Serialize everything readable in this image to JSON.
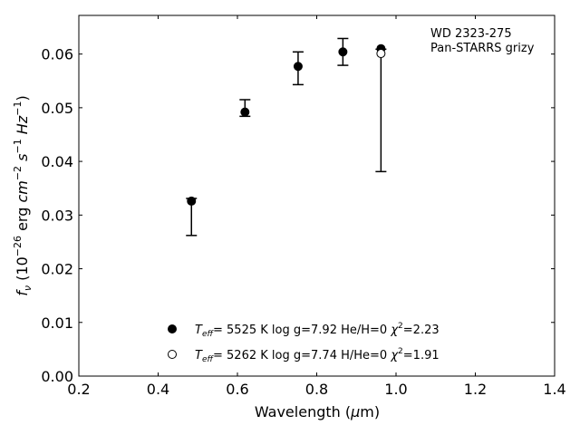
{
  "chart_data": {
    "type": "scatter",
    "annotation_lines": [
      "WD 2323-275",
      "Pan-STARRS grizy"
    ],
    "xlabel": "Wavelength (μm)",
    "ylabel": "f_ν (10^-26 erg cm^-2 s^-1 Hz^-1)",
    "xlim": [
      0.2,
      1.4
    ],
    "ylim": [
      0.0,
      0.0672
    ],
    "xticks": [
      "0.2",
      "0.4",
      "0.6",
      "0.8",
      "1.0",
      "1.2",
      "1.4"
    ],
    "yticks": [
      "0.00",
      "0.01",
      "0.02",
      "0.03",
      "0.04",
      "0.05",
      "0.06"
    ],
    "grid": false,
    "legend_position": "bottom-center",
    "observed": {
      "x": [
        0.484,
        0.619,
        0.753,
        0.866,
        0.962
      ],
      "y": [
        0.0297,
        0.05,
        0.0574,
        0.0604,
        0.0605
      ],
      "y_low": [
        0.0262,
        0.0484,
        0.0543,
        0.0579,
        0.0381
      ],
      "y_high": [
        0.0331,
        0.0515,
        0.0604,
        0.0629,
        0.0609
      ]
    },
    "series": [
      {
        "marker": "filled",
        "x": [
          0.484,
          0.619,
          0.753,
          0.866,
          0.962
        ],
        "y": [
          0.0326,
          0.0492,
          0.0577,
          0.0604,
          0.061
        ],
        "legend_label": "T_eff= 5525 K log g=7.92 He/H=0 χ²=2.23",
        "legend_parts": {
          "teff": "5525 K",
          "logg": "log g=7.92",
          "comp": "He/H=0",
          "chi2": "=2.23"
        }
      },
      {
        "marker": "open",
        "x": [
          0.962
        ],
        "y": [
          0.0601
        ],
        "legend_label": "T_eff= 5262 K log g=7.74 H/He=0 χ²=1.91",
        "legend_parts": {
          "teff": "5262 K",
          "logg": "log g=7.74",
          "comp": "H/He=0",
          "chi2": "=1.91"
        }
      }
    ]
  }
}
